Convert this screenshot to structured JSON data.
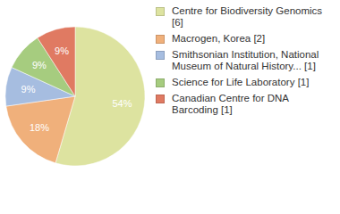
{
  "chart_data": {
    "type": "pie",
    "categories": [
      "Centre for Biodiversity Genomics [6]",
      "Macrogen, Korea [2]",
      "Smithsonian Institution, National Museum of Natural History... [1]",
      "Science for Life Laboratory [1]",
      "Canadian Centre for DNA Barcoding [1]"
    ],
    "values": [
      54,
      18,
      9,
      9,
      9
    ],
    "value_labels": [
      "54%",
      "18%",
      "9%",
      "9%",
      "9%"
    ],
    "colors": [
      "#dde3a0",
      "#f0b07b",
      "#a6bde0",
      "#a6cc7f",
      "#e07a62"
    ],
    "data_labels": true,
    "legend": "right"
  }
}
